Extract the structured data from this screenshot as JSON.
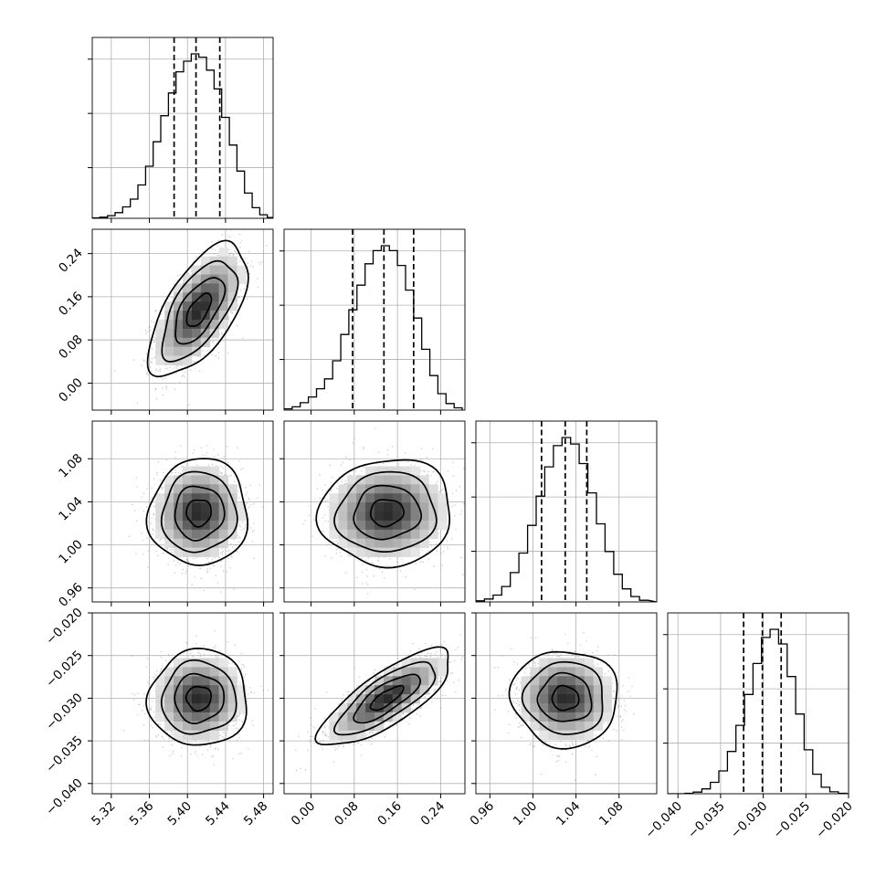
{
  "chart_data": {
    "type": "corner",
    "title": "",
    "params": [
      {
        "range": [
          5.3,
          5.49
        ],
        "ticks": [
          5.32,
          5.36,
          5.4,
          5.44,
          5.48
        ],
        "tick_labels": [
          "5.32",
          "5.36",
          "5.40",
          "5.44",
          "5.48"
        ],
        "quantiles": [
          5.386,
          5.409,
          5.434
        ],
        "hist_bins": [
          5.3,
          5.308,
          5.316,
          5.324,
          5.332,
          5.34,
          5.348,
          5.356,
          5.364,
          5.372,
          5.38,
          5.388,
          5.396,
          5.404,
          5.412,
          5.42,
          5.428,
          5.436,
          5.444,
          5.452,
          5.46,
          5.468,
          5.476,
          5.484
        ],
        "hist_counts": [
          0.3,
          0.7,
          1.6,
          3.5,
          7.0,
          11.8,
          20.5,
          32.0,
          47.0,
          63.0,
          77.0,
          90.0,
          96.5,
          101.0,
          99.0,
          91.0,
          79.5,
          62.0,
          45.0,
          29.0,
          15.5,
          6.5,
          2.2,
          0.5
        ]
      },
      {
        "range": [
          -0.05,
          0.285
        ],
        "ticks": [
          0.0,
          0.08,
          0.16,
          0.24
        ],
        "tick_labels": [
          "0.00",
          "0.08",
          "0.16",
          "0.24"
        ],
        "quantiles": [
          0.077,
          0.135,
          0.19
        ],
        "hist_bins": [
          -0.05,
          -0.035,
          -0.02,
          -0.005,
          0.01,
          0.025,
          0.04,
          0.055,
          0.07,
          0.085,
          0.1,
          0.115,
          0.13,
          0.145,
          0.16,
          0.175,
          0.19,
          0.205,
          0.22,
          0.235,
          0.25,
          0.265
        ],
        "hist_counts": [
          0.8,
          2.0,
          4.5,
          8.0,
          13.0,
          19.0,
          30.0,
          46.0,
          61.0,
          76.0,
          89.0,
          97.0,
          100.0,
          97.0,
          88.0,
          73.0,
          56.0,
          37.0,
          21.0,
          10.0,
          4.0,
          1.4
        ]
      },
      {
        "range": [
          0.947,
          1.115
        ],
        "ticks": [
          0.96,
          1.0,
          1.04,
          1.08
        ],
        "tick_labels": [
          "0.96",
          "1.00",
          "1.04",
          "1.08"
        ],
        "quantiles": [
          1.008,
          1.03,
          1.05
        ],
        "hist_bins": [
          0.947,
          0.955,
          0.963,
          0.971,
          0.979,
          0.987,
          0.995,
          1.003,
          1.011,
          1.019,
          1.027,
          1.035,
          1.043,
          1.051,
          1.059,
          1.067,
          1.075,
          1.083,
          1.091,
          1.099,
          1.107
        ],
        "hist_counts": [
          0.7,
          1.8,
          4.2,
          9.5,
          18.0,
          30.0,
          47.0,
          65.0,
          83.0,
          96.0,
          101.0,
          97.0,
          85.0,
          67.0,
          48.0,
          31.0,
          17.0,
          8.0,
          3.3,
          1.0
        ]
      },
      {
        "range": [
          -0.0412,
          -0.02
        ],
        "ticks": [
          -0.04,
          -0.035,
          -0.03,
          -0.025,
          -0.02
        ],
        "tick_labels": [
          "−0.040",
          "−0.035",
          "−0.030",
          "−0.025",
          "−0.020"
        ],
        "quantiles": [
          -0.0323,
          -0.0301,
          -0.0279
        ],
        "hist_bins": [
          -0.0412,
          -0.0402,
          -0.0392,
          -0.0382,
          -0.0372,
          -0.0362,
          -0.0352,
          -0.0342,
          -0.0332,
          -0.0322,
          -0.0312,
          -0.0302,
          -0.0292,
          -0.0282,
          -0.0272,
          -0.0262,
          -0.0252,
          -0.0242,
          -0.0232,
          -0.0222,
          -0.0212
        ],
        "hist_counts": [
          0,
          0,
          0.3,
          1.0,
          3.0,
          7.0,
          14.0,
          26.0,
          42.0,
          61.0,
          80.0,
          96.0,
          101.0,
          92.0,
          72.0,
          49.0,
          27.0,
          12.0,
          4.0,
          1.2,
          0.3
        ]
      }
    ],
    "pairs": [
      {
        "x": 0,
        "y": 1,
        "mean": [
          5.412,
          0.135
        ],
        "sd": [
          0.022,
          0.052
        ],
        "rho": 0.62
      },
      {
        "x": 0,
        "y": 2,
        "mean": [
          5.412,
          1.03
        ],
        "sd": [
          0.022,
          0.021
        ],
        "rho": 0.03
      },
      {
        "x": 0,
        "y": 3,
        "mean": [
          5.412,
          -0.03
        ],
        "sd": [
          0.022,
          0.0024
        ],
        "rho": 0.02
      },
      {
        "x": 1,
        "y": 2,
        "mean": [
          0.14,
          1.03
        ],
        "sd": [
          0.052,
          0.021
        ],
        "rho": 0.05
      },
      {
        "x": 1,
        "y": 3,
        "mean": [
          0.14,
          -0.03
        ],
        "sd": [
          0.052,
          0.0024
        ],
        "rho": 0.78
      },
      {
        "x": 2,
        "y": 3,
        "mean": [
          1.03,
          -0.03
        ],
        "sd": [
          0.021,
          0.0024
        ],
        "rho": -0.03
      }
    ],
    "contour_levels_sigma": [
      0.5,
      1.0,
      1.5,
      2.0
    ],
    "grid": true,
    "legend": "none"
  }
}
